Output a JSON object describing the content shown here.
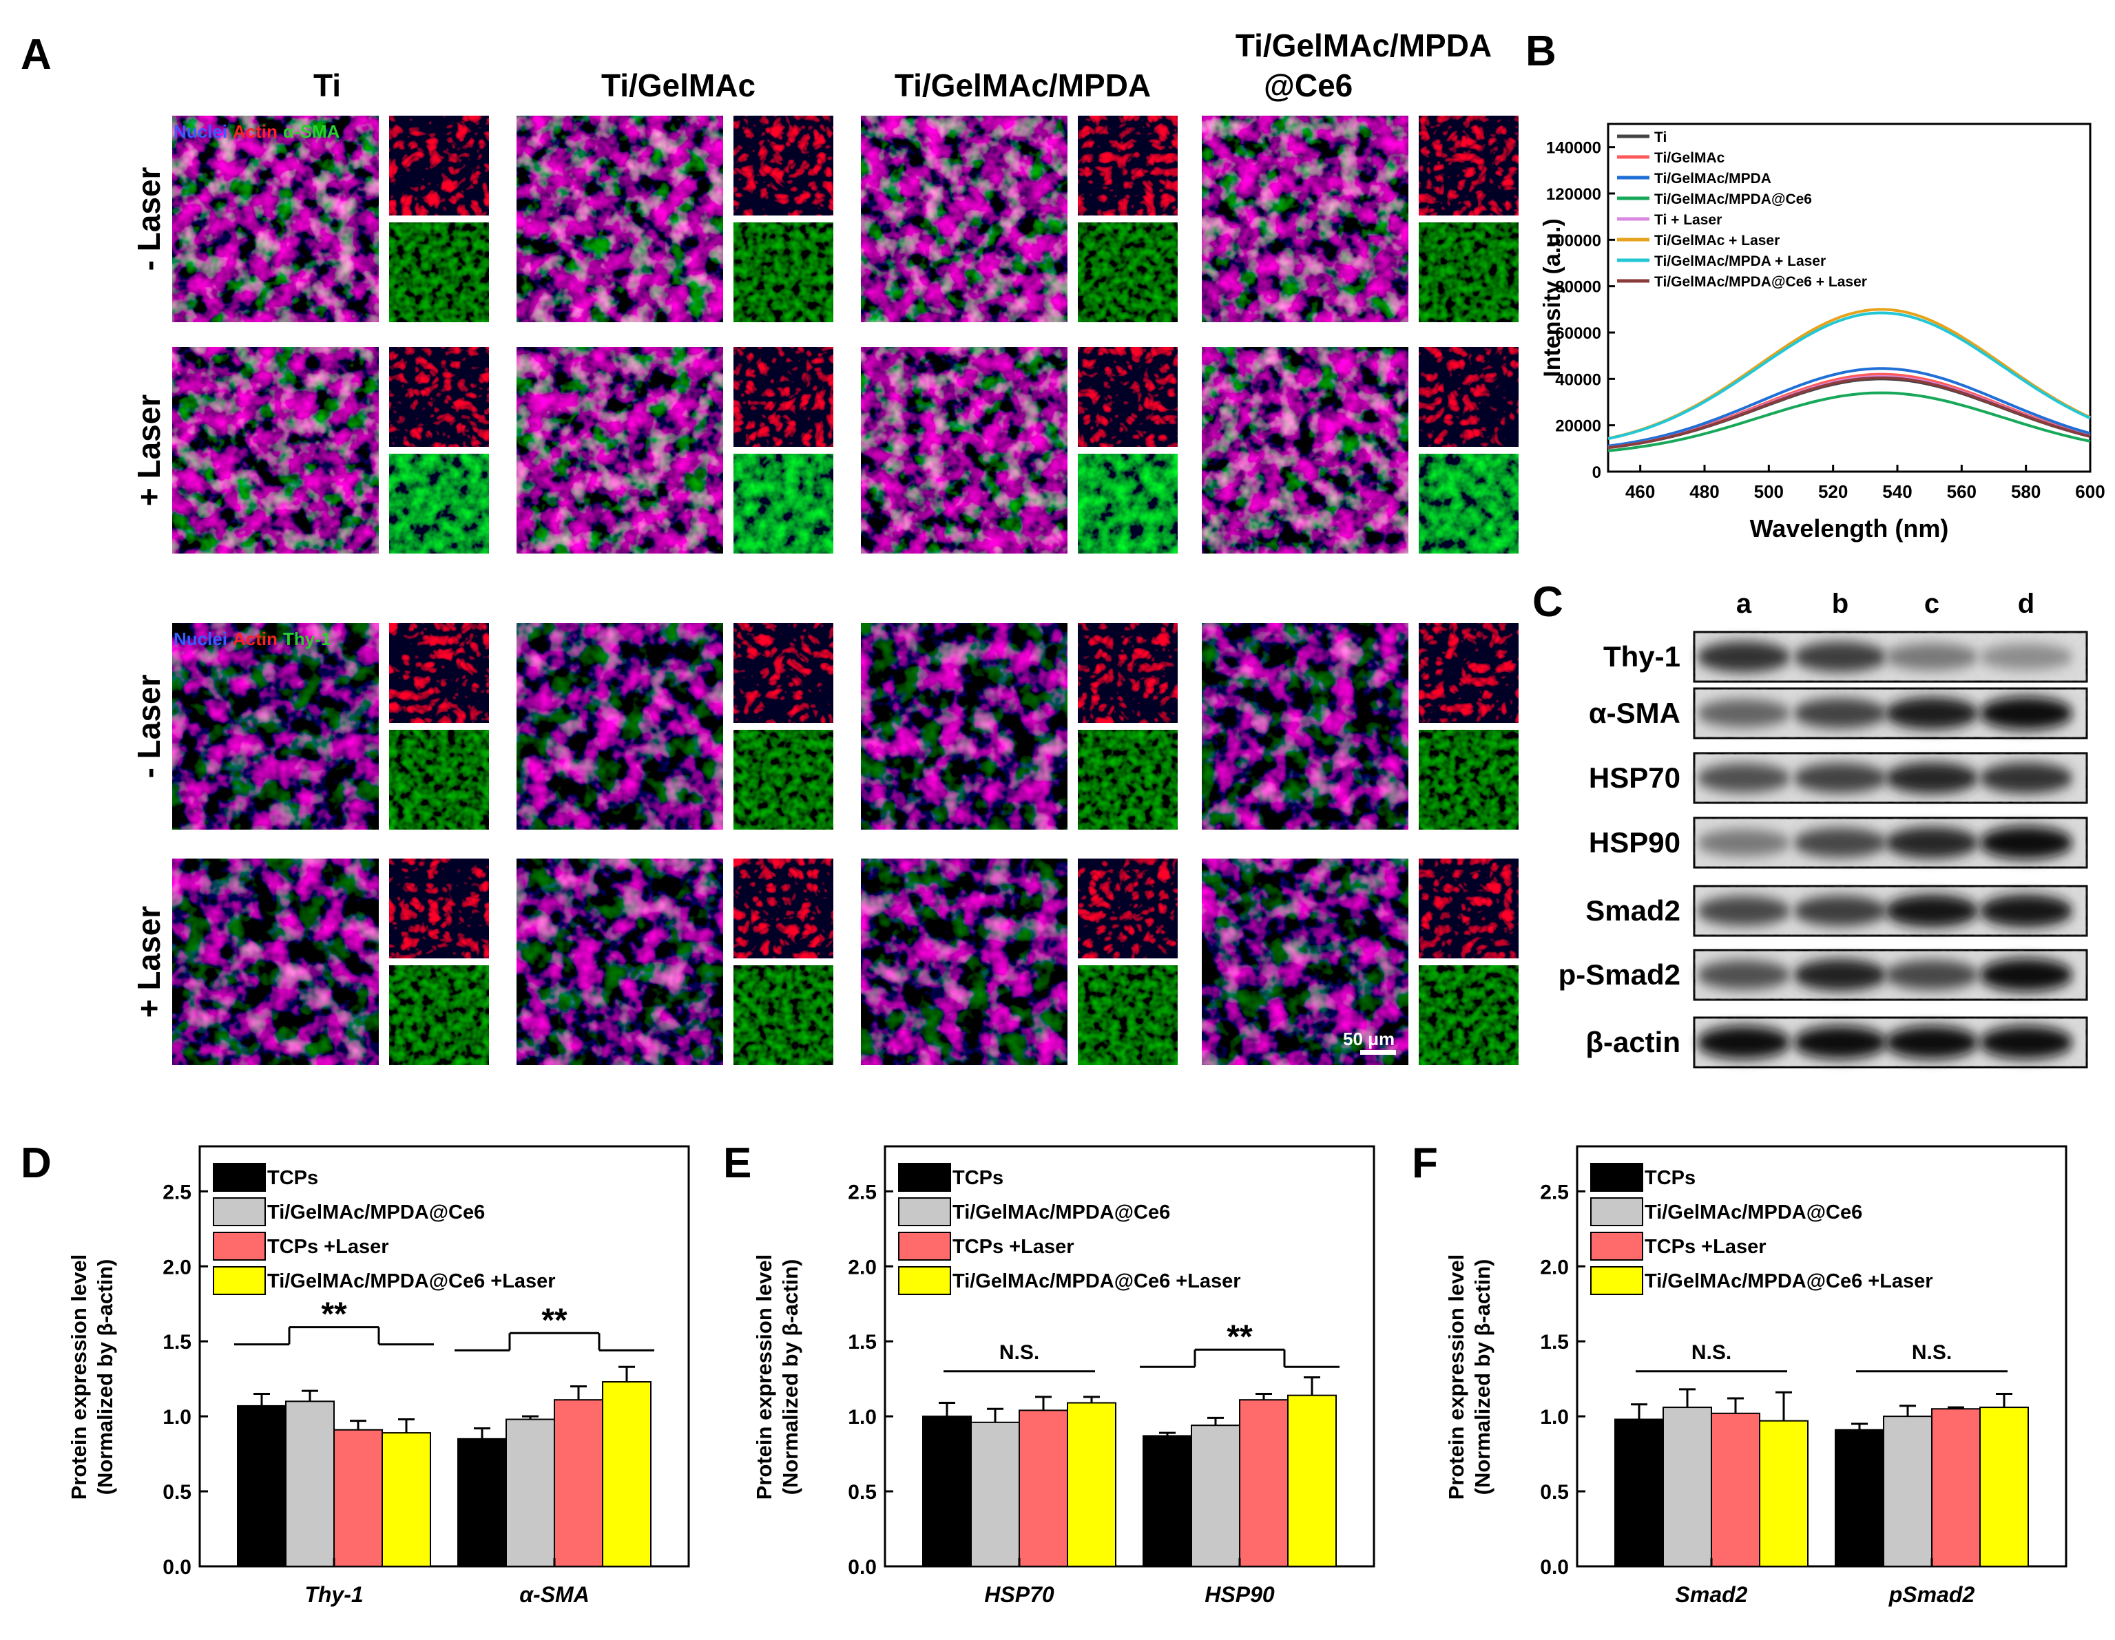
{
  "panel_a": {
    "letter": "A",
    "columns": [
      "Ti",
      "Ti/GelMAc",
      "Ti/GelMAc/MPDA",
      "Ti/GelMAc/MPDA",
      "@Ce6"
    ],
    "rows": [
      "- Laser",
      "+ Laser",
      "- Laser",
      "+ Laser"
    ],
    "stain_top": [
      "Nuclei",
      "Actin",
      "α-SMA"
    ],
    "stain_bottom": [
      "Nuclei",
      "Actin",
      "Thy-1"
    ],
    "scale_bar": "50 μm"
  },
  "panel_b": {
    "letter": "B",
    "chart_data": {
      "type": "line",
      "xlabel": "Wavelength (nm)",
      "ylabel": "Intensity (a.u.)",
      "xlim": [
        450,
        600
      ],
      "ylim": [
        0,
        150000
      ],
      "xticks": [
        460,
        480,
        500,
        520,
        540,
        560,
        580,
        600
      ],
      "yticks": [
        0,
        20000,
        40000,
        60000,
        80000,
        100000,
        120000,
        140000
      ],
      "legend_position": "top-left",
      "series": [
        {
          "name": "Ti",
          "color": "#444444",
          "peak": 40000,
          "x": [
            450,
            480,
            500,
            520,
            535,
            550,
            570,
            600
          ],
          "values": [
            9000,
            17000,
            27000,
            37000,
            40000,
            37500,
            30000,
            16000
          ]
        },
        {
          "name": "Ti/GelMAc",
          "color": "#ff5a5a",
          "peak": 42000,
          "x": [
            450,
            480,
            500,
            520,
            535,
            550,
            570,
            600
          ],
          "values": [
            9000,
            17500,
            28000,
            38500,
            42000,
            39500,
            31500,
            16500
          ]
        },
        {
          "name": "Ti/GelMAc/MPDA",
          "color": "#1f6fd6",
          "peak": 44500,
          "x": [
            450,
            480,
            500,
            520,
            535,
            550,
            570,
            600
          ],
          "values": [
            9500,
            18500,
            29500,
            41000,
            44500,
            42000,
            33500,
            17500
          ]
        },
        {
          "name": "Ti/GelMAc/MPDA@Ce6",
          "color": "#17a85a",
          "peak": 34000,
          "x": [
            450,
            480,
            500,
            520,
            535,
            550,
            570,
            600
          ],
          "values": [
            8000,
            15000,
            23000,
            31000,
            34000,
            32000,
            25500,
            13000
          ]
        },
        {
          "name": "Ti + Laser",
          "color": "#d98ae0",
          "peak": 41000,
          "x": [
            450,
            480,
            500,
            520,
            535,
            550,
            570,
            600
          ],
          "values": [
            9000,
            17000,
            27500,
            37500,
            41000,
            38500,
            30500,
            16000
          ]
        },
        {
          "name": "Ti/GelMAc + Laser",
          "color": "#e6a21a",
          "peak": 70000,
          "x": [
            450,
            480,
            500,
            520,
            535,
            550,
            570,
            600
          ],
          "values": [
            11000,
            24000,
            42000,
            61000,
            70000,
            66500,
            52000,
            25000
          ]
        },
        {
          "name": "Ti/GelMAc/MPDA + Laser",
          "color": "#22c7d6",
          "peak": 68500,
          "x": [
            450,
            480,
            500,
            520,
            535,
            550,
            570,
            600
          ],
          "values": [
            11000,
            23500,
            41000,
            59500,
            68500,
            65000,
            51000,
            24500
          ]
        },
        {
          "name": "Ti/GelMAc/MPDA@Ce6 + Laser",
          "color": "#8a3b3b",
          "peak": 40500,
          "x": [
            450,
            480,
            500,
            520,
            535,
            550,
            570,
            600
          ],
          "values": [
            9000,
            17000,
            27500,
            37000,
            40500,
            38000,
            30000,
            15500
          ]
        }
      ]
    }
  },
  "panel_c": {
    "letter": "C",
    "lanes": [
      "a",
      "b",
      "c",
      "d"
    ],
    "proteins": [
      "Thy-1",
      "α-SMA",
      "HSP70",
      "HSP90",
      "Smad2",
      "p-Smad2",
      "β-actin"
    ],
    "band_darkness": [
      [
        0.8,
        0.75,
        0.45,
        0.35
      ],
      [
        0.55,
        0.72,
        0.9,
        0.98
      ],
      [
        0.65,
        0.72,
        0.85,
        0.8
      ],
      [
        0.45,
        0.7,
        0.85,
        0.98
      ],
      [
        0.7,
        0.75,
        0.95,
        0.95
      ],
      [
        0.65,
        0.88,
        0.7,
        0.98
      ],
      [
        0.98,
        0.98,
        0.98,
        0.98
      ]
    ]
  },
  "bar_charts": {
    "ylabel": "Protein expression level",
    "ylabel2": "(Normalized by β-actin)",
    "legend": [
      "TCPs",
      "Ti/GelMAc/MPDA@Ce6",
      "TCPs +Laser",
      "Ti/GelMAc/MPDA@Ce6 +Laser"
    ],
    "colors": [
      "#000000",
      "#c8c8c8",
      "#ff6b6b",
      "#ffff00"
    ]
  },
  "chart_data": [
    {
      "letter": "D",
      "type": "bar",
      "categories": [
        "Thy-1",
        "α-SMA"
      ],
      "ylim": [
        0,
        2.8
      ],
      "yticks": [
        "0.0",
        "0.5",
        "1.0",
        "1.5",
        "2.0",
        "2.5"
      ],
      "series": [
        {
          "name": "TCPs",
          "values": [
            1.07,
            0.85
          ],
          "errors": [
            0.08,
            0.07
          ]
        },
        {
          "name": "Ti/GelMAc/MPDA@Ce6",
          "values": [
            1.1,
            0.98
          ],
          "errors": [
            0.07,
            0.02
          ]
        },
        {
          "name": "TCPs +Laser",
          "values": [
            0.91,
            1.11
          ],
          "errors": [
            0.06,
            0.09
          ]
        },
        {
          "name": "Ti/GelMAc/MPDA@Ce6 +Laser",
          "values": [
            0.89,
            1.23
          ],
          "errors": [
            0.09,
            0.1
          ]
        }
      ],
      "annotations": [
        {
          "category": 0,
          "text": "**",
          "type": "split",
          "y": 1.48
        },
        {
          "category": 1,
          "text": "**",
          "type": "split",
          "y": 1.44
        }
      ]
    },
    {
      "letter": "E",
      "type": "bar",
      "categories": [
        "HSP70",
        "HSP90"
      ],
      "ylim": [
        0,
        2.8
      ],
      "yticks": [
        "0.0",
        "0.5",
        "1.0",
        "1.5",
        "2.0",
        "2.5"
      ],
      "series": [
        {
          "name": "TCPs",
          "values": [
            1.0,
            0.87
          ],
          "errors": [
            0.09,
            0.02
          ]
        },
        {
          "name": "Ti/GelMAc/MPDA@Ce6",
          "values": [
            0.96,
            0.94
          ],
          "errors": [
            0.09,
            0.05
          ]
        },
        {
          "name": "TCPs +Laser",
          "values": [
            1.04,
            1.11
          ],
          "errors": [
            0.09,
            0.04
          ]
        },
        {
          "name": "Ti/GelMAc/MPDA@Ce6 +Laser",
          "values": [
            1.09,
            1.14
          ],
          "errors": [
            0.04,
            0.12
          ]
        }
      ],
      "annotations": [
        {
          "category": 0,
          "text": "N.S.",
          "type": "line",
          "y": 1.3
        },
        {
          "category": 1,
          "text": "**",
          "type": "split",
          "y": 1.33
        }
      ]
    },
    {
      "letter": "F",
      "type": "bar",
      "categories": [
        "Smad2",
        "pSmad2"
      ],
      "ylim": [
        0,
        2.8
      ],
      "yticks": [
        "0.0",
        "0.5",
        "1.0",
        "1.5",
        "2.0",
        "2.5"
      ],
      "series": [
        {
          "name": "TCPs",
          "values": [
            0.98,
            0.91
          ],
          "errors": [
            0.1,
            0.04
          ]
        },
        {
          "name": "Ti/GelMAc/MPDA@Ce6",
          "values": [
            1.06,
            1.0
          ],
          "errors": [
            0.12,
            0.07
          ]
        },
        {
          "name": "TCPs +Laser",
          "values": [
            1.02,
            1.05
          ],
          "errors": [
            0.1,
            0.01
          ]
        },
        {
          "name": "Ti/GelMAc/MPDA@Ce6 +Laser",
          "values": [
            0.97,
            1.06
          ],
          "errors": [
            0.19,
            0.09
          ]
        }
      ],
      "annotations": [
        {
          "category": 0,
          "text": "N.S.",
          "type": "line",
          "y": 1.3
        },
        {
          "category": 1,
          "text": "N.S.",
          "type": "line",
          "y": 1.3
        }
      ]
    }
  ]
}
